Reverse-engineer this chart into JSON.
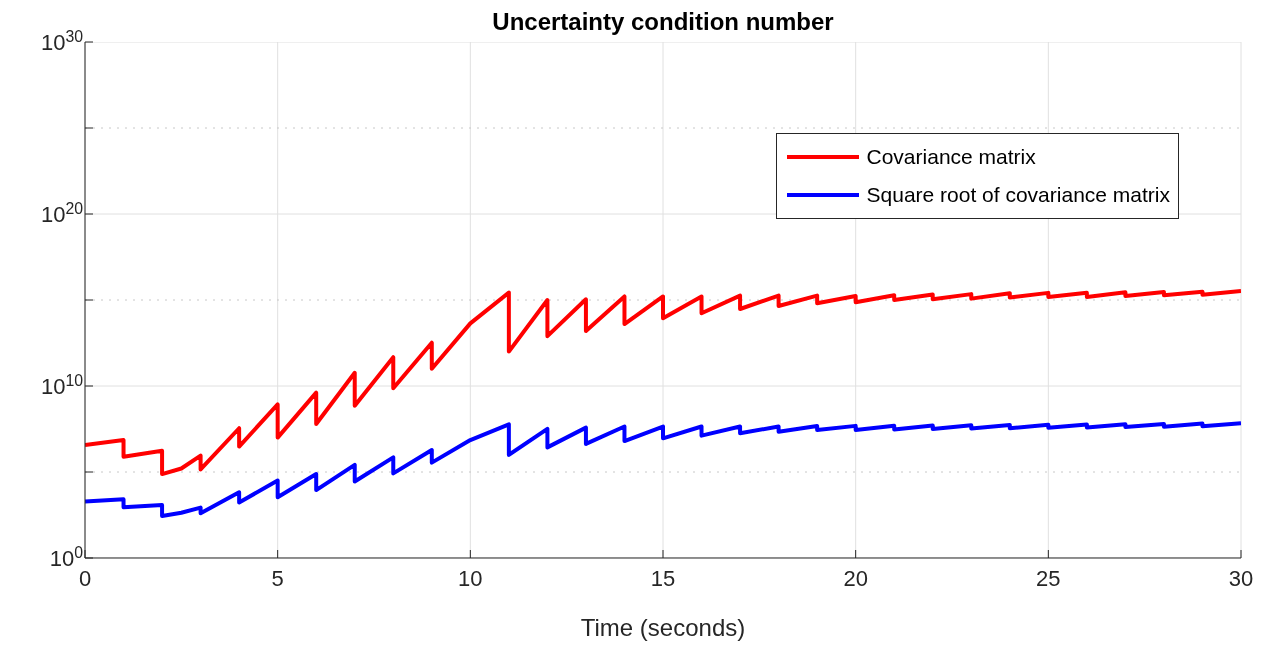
{
  "chart_data": {
    "type": "line",
    "title": "Uncertainty condition number",
    "xlabel": "Time (seconds)",
    "xlim": [
      0,
      30
    ],
    "xticks": [
      0,
      5,
      10,
      15,
      20,
      25,
      30
    ],
    "ylim": [
      1,
      1e+30
    ],
    "yticks": [
      {
        "value": 1,
        "label": "10$^{0}$"
      },
      {
        "value": 100000.0,
        "label": null
      },
      {
        "value": 10000000000.0,
        "label": "10$^{10}$"
      },
      {
        "value": 1000000000000000.0,
        "label": null
      },
      {
        "value": 1e+20,
        "label": "10$^{20}$"
      },
      {
        "value": 1e+25,
        "label": null
      },
      {
        "value": 1e+30,
        "label": "10$^{30}$"
      }
    ],
    "log": "y",
    "grid": true,
    "legend": "top right",
    "marker": "none",
    "line_style": "solid",
    "series": [
      {
        "name": "Covariance matrix",
        "color": "#ff0000",
        "x": [
          0,
          1,
          1,
          2,
          2,
          2.5,
          3,
          3,
          4,
          4,
          5,
          5,
          6,
          6,
          7,
          7,
          8,
          8,
          9,
          9,
          10,
          11,
          11,
          12,
          12,
          13,
          13,
          14,
          14,
          15,
          15,
          16,
          16,
          17,
          17,
          18,
          18,
          19,
          19,
          20,
          20,
          21,
          21,
          22,
          22,
          23,
          23,
          24,
          24,
          25,
          25,
          26,
          26,
          27,
          27,
          28,
          28,
          29,
          29,
          30
        ],
        "values": [
          3700000.0,
          7200000.0,
          780000.0,
          1700000.0,
          76000.0,
          160000.0,
          890000.0,
          140000.0,
          35000000.0,
          3000000.0,
          850000000.0,
          10000000.0,
          4100000000.0,
          62000000.0,
          59000000000.0,
          720000000.0,
          470000000000.0,
          7400000000.0,
          3300000000000.0,
          100000000000.0,
          44000000000000.0,
          2700000000000000.0,
          1000000000000.0,
          1000000000000000.0,
          7900000000000.0,
          1100000000000000.0,
          16000000000000.0,
          1600000000000000.0,
          40000000000000.0,
          1600000000000000.0,
          87000000000000.0,
          1600000000000000.0,
          170000000000000.0,
          1800000000000000.0,
          300000000000000.0,
          1800000000000000.0,
          450000000000000.0,
          1800000000000000.0,
          650000000000000.0,
          1700000000000000.0,
          740000000000000.0,
          1900000000000000.0,
          1000000000000000.0,
          2100000000000000.0,
          1100000000000000.0,
          2200000000000000.0,
          1200000000000000.0,
          2500000000000000.0,
          1400000000000000.0,
          2600000000000000.0,
          1500000000000000.0,
          2600000000000000.0,
          1500000000000000.0,
          2800000000000000.0,
          1700000000000000.0,
          2900000000000000.0,
          1900000000000000.0,
          3000000000000000.0,
          2000000000000000.0,
          3300000000000000.0
        ]
      },
      {
        "name": "Square root of covariance matrix",
        "color": "#0000ff",
        "x": [
          0,
          1,
          1,
          2,
          2,
          2.5,
          3,
          3,
          4,
          4,
          5,
          5,
          6,
          6,
          7,
          7,
          8,
          8,
          9,
          9,
          10,
          11,
          11,
          12,
          12,
          13,
          13,
          14,
          14,
          15,
          15,
          16,
          16,
          17,
          17,
          18,
          18,
          19,
          19,
          20,
          20,
          21,
          21,
          22,
          22,
          23,
          23,
          24,
          24,
          25,
          25,
          26,
          26,
          27,
          27,
          28,
          28,
          29,
          29,
          30
        ],
        "values": [
          1900,
          2600,
          890,
          1200,
          280,
          430,
          850,
          400,
          6600,
          1700,
          32000.0,
          3400,
          76000.0,
          8900,
          260000.0,
          28000.0,
          710000.0,
          83000.0,
          1900000.0,
          350000.0,
          7200000.0,
          59000000.0,
          980000.0,
          32000000.0,
          2700000.0,
          38000000.0,
          4300000.0,
          44000000.0,
          6300000.0,
          44000000.0,
          9100000.0,
          44000000.0,
          13000000.0,
          44000000.0,
          18000000.0,
          44000000.0,
          22000000.0,
          47000000.0,
          28000000.0,
          48000000.0,
          28000000.0,
          49000000.0,
          30000000.0,
          51000000.0,
          32000000.0,
          52000000.0,
          34000000.0,
          54000000.0,
          35000000.0,
          56000000.0,
          37000000.0,
          58000000.0,
          39000000.0,
          60000000.0,
          41000000.0,
          62000000.0,
          43000000.0,
          65000000.0,
          45000000.0,
          68000000.0
        ]
      }
    ]
  }
}
